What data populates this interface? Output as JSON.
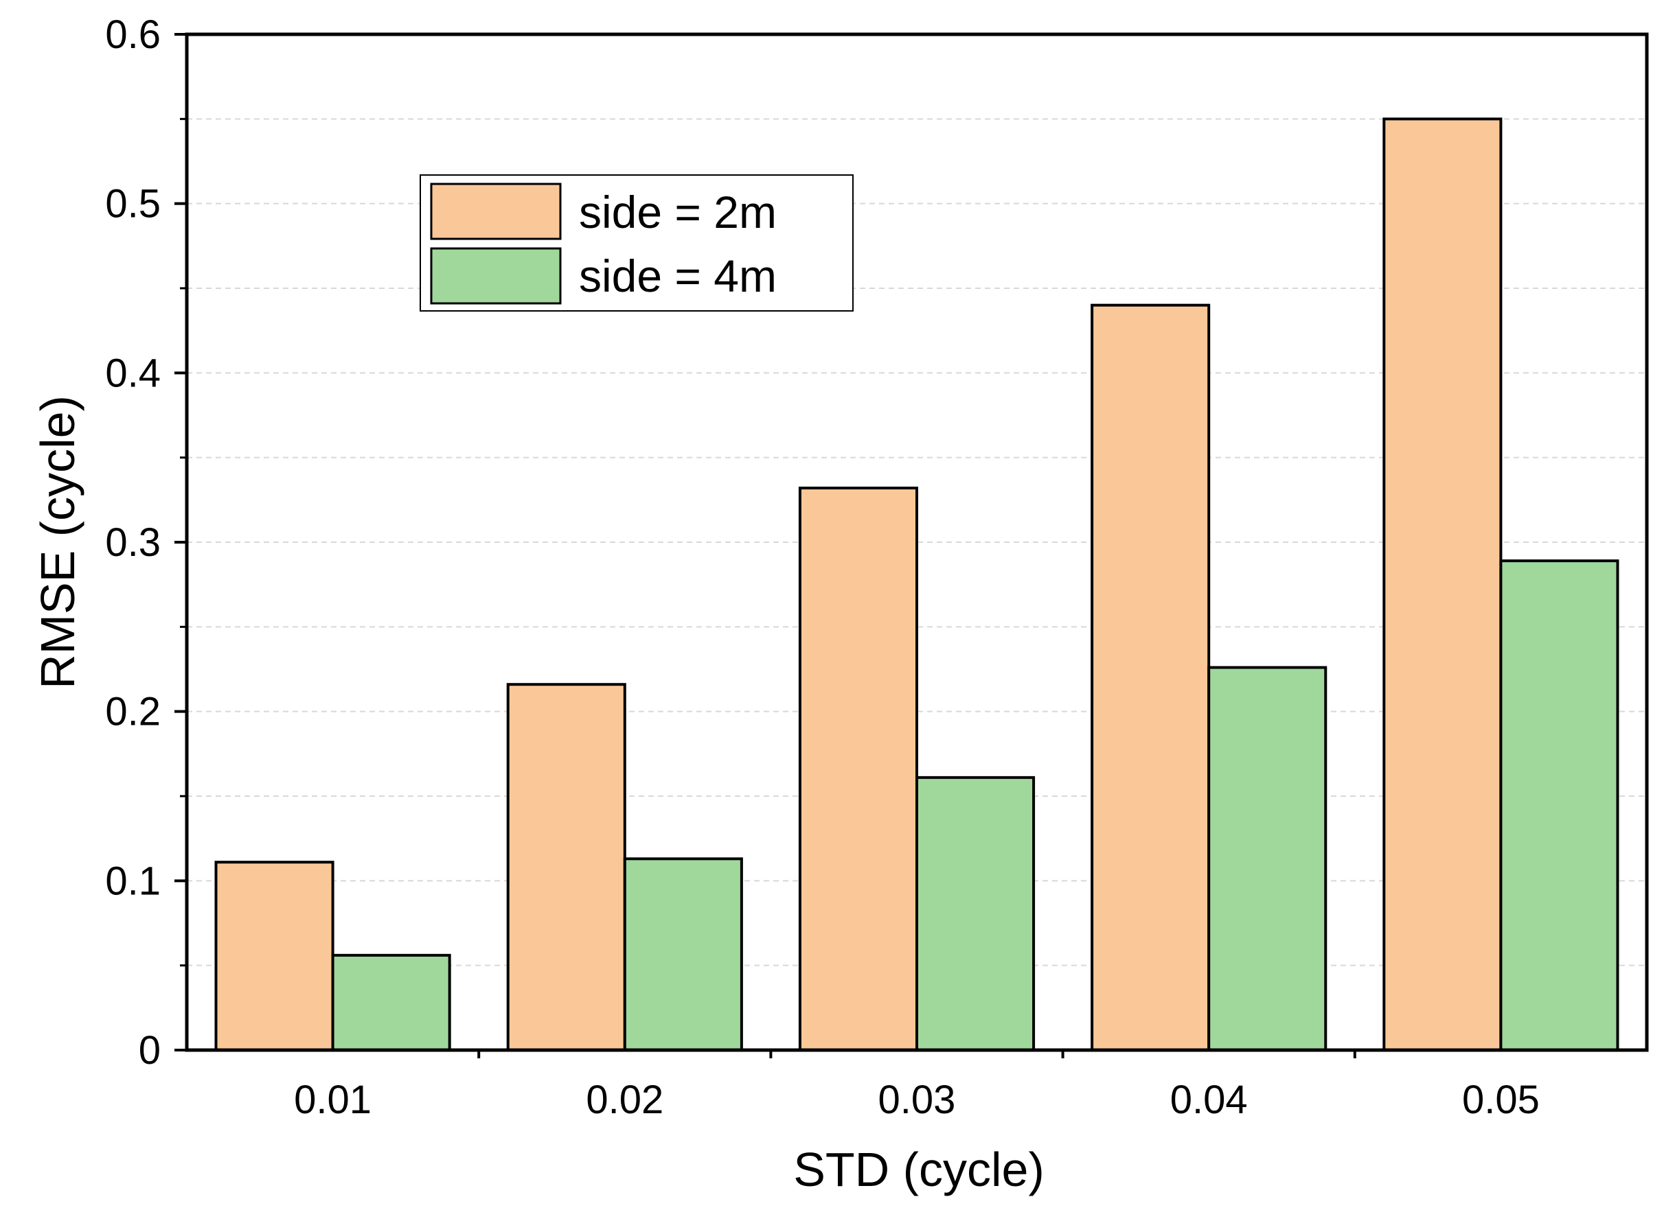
{
  "chart_data": {
    "type": "bar",
    "categories": [
      "0.01",
      "0.02",
      "0.03",
      "0.04",
      "0.05"
    ],
    "series": [
      {
        "name": "side = 2m",
        "values": [
          0.111,
          0.216,
          0.332,
          0.44,
          0.55
        ],
        "color": "#FAC898"
      },
      {
        "name": "side = 4m",
        "values": [
          0.056,
          0.113,
          0.161,
          0.226,
          0.289
        ],
        "color": "#A0D89C"
      }
    ],
    "xlabel": "STD (cycle)",
    "ylabel": "RMSE (cycle)",
    "ylim": [
      0,
      0.6
    ],
    "yticks": [
      "0",
      "0.1",
      "0.2",
      "0.3",
      "0.4",
      "0.5",
      "0.6"
    ],
    "grid": true,
    "legend_position": "upper-left"
  }
}
